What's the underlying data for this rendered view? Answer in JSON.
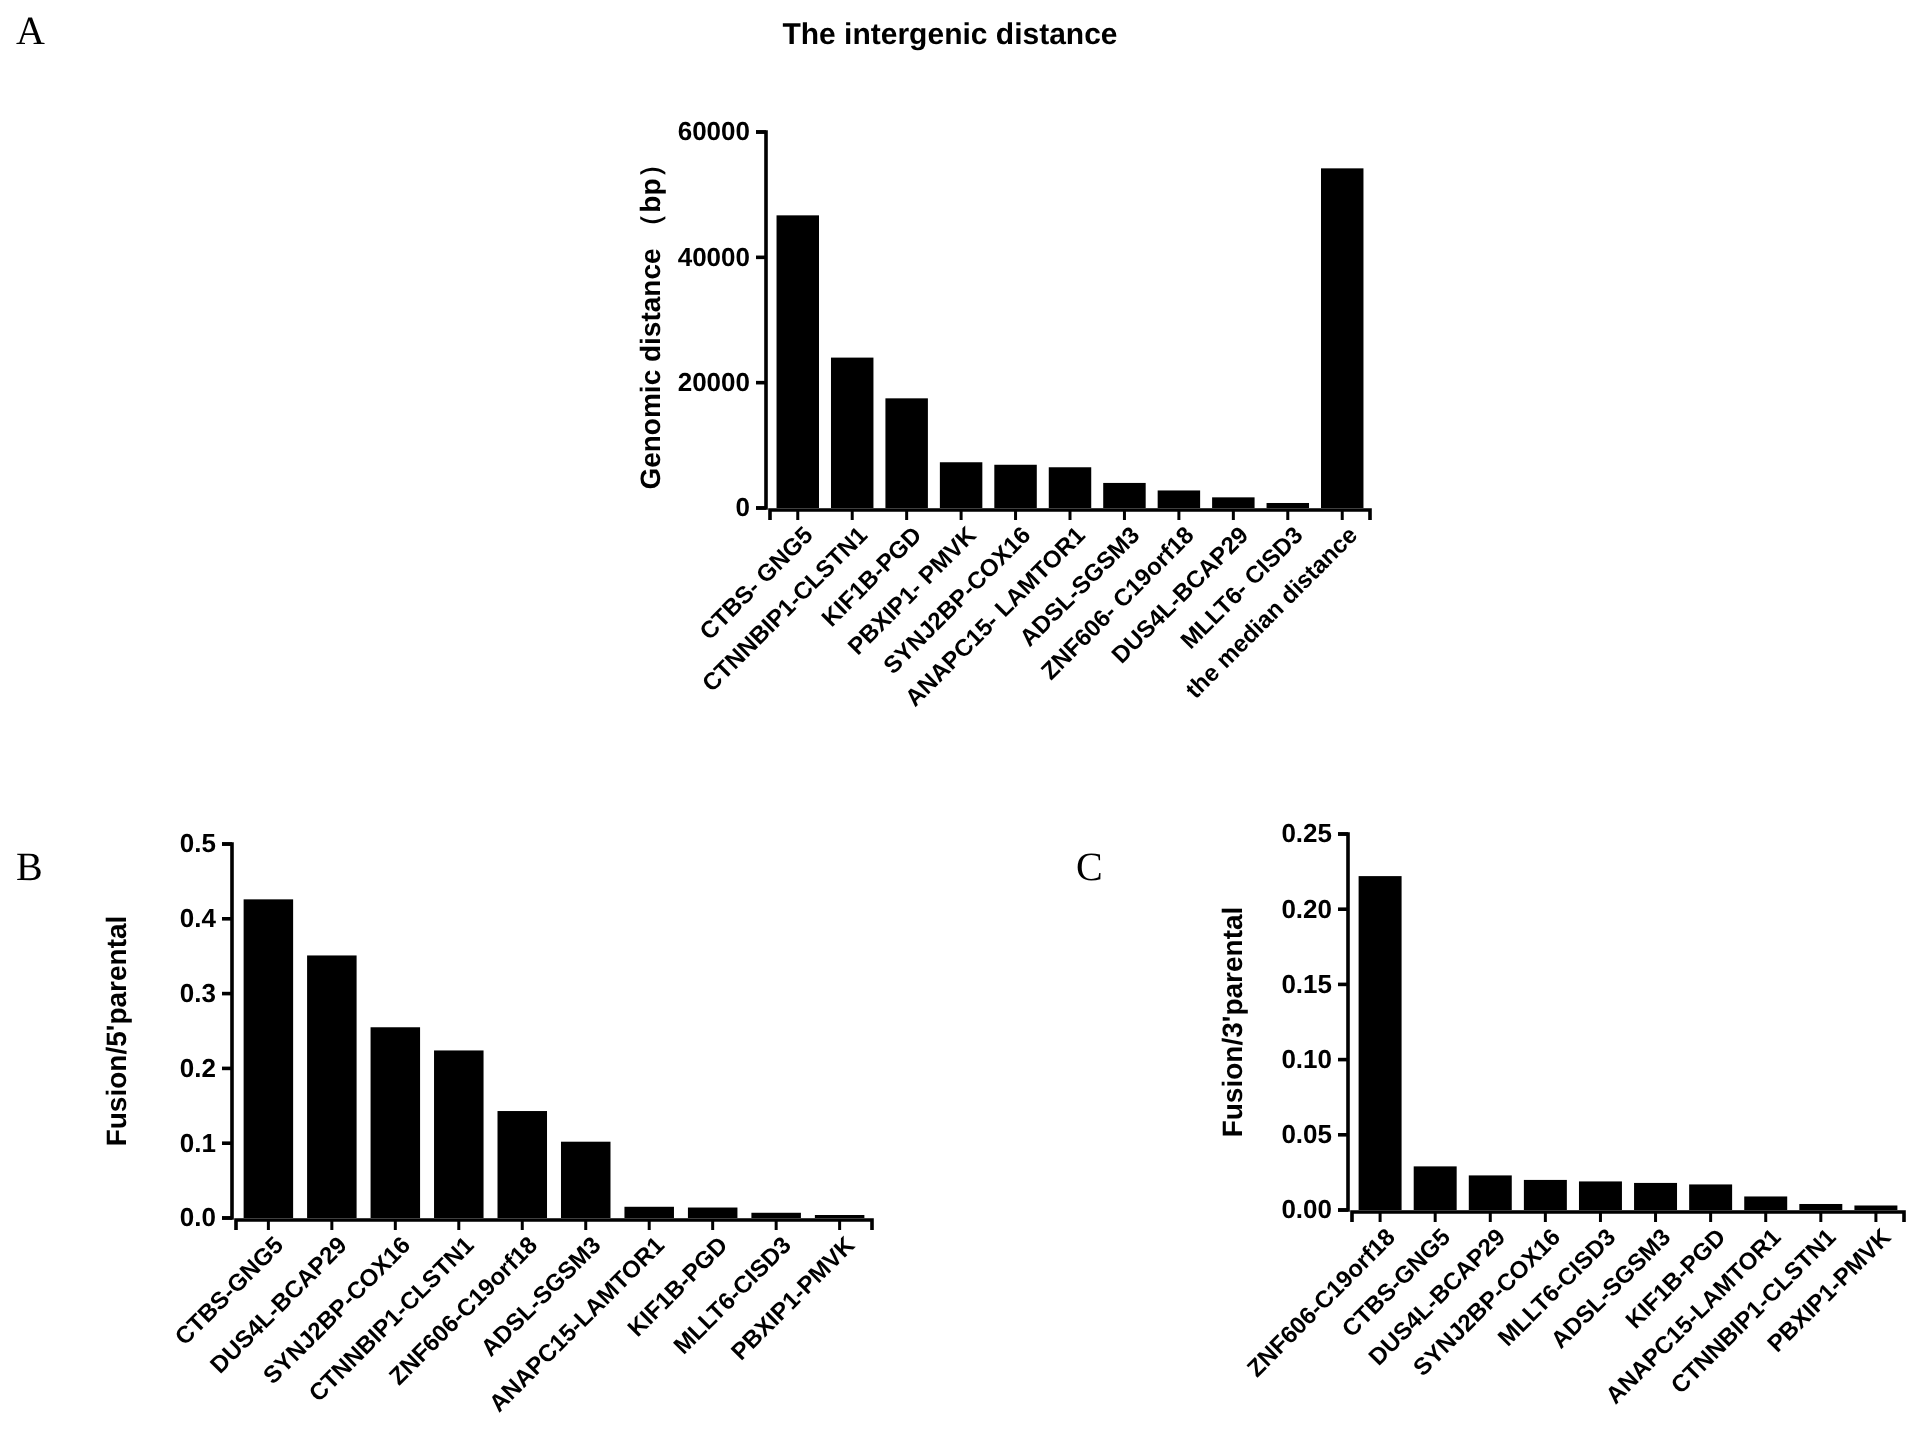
{
  "chart_data": [
    {
      "type": "bar",
      "title": "The intergenic distance",
      "ylabel": "Genomic distance （bp）",
      "annotations": [
        "A"
      ],
      "categories": [
        "CTBS- GNG5",
        "CTNNBIP1-CLSTN1",
        "KIF1B-PGD",
        "PBXIP1- PMVK",
        "SYNJ2BP-COX16",
        "ANAPC15- LAMTOR1",
        "ADSL-SGSM3",
        "ZNF606- C19orf18",
        "DUS4L-BCAP29",
        "MLLT6- CISD3",
        "the median distance"
      ],
      "values": [
        46700,
        24000,
        17500,
        7300,
        6900,
        6500,
        4000,
        2800,
        1700,
        800,
        54200
      ],
      "color": "#000000",
      "ylim": [
        0,
        60000
      ],
      "yticks": [
        0,
        20000,
        40000,
        60000
      ],
      "grid": false
    },
    {
      "type": "bar",
      "ylabel": "Fusion/5'parental",
      "annotations": [
        "B"
      ],
      "categories": [
        "CTBS-GNG5",
        "DUS4L-BCAP29",
        "SYNJ2BP-COX16",
        "CTNNBIP1-CLSTN1",
        "ZNF606-C19orf18",
        "ADSL-SGSM3",
        "ANAPC15-LAMTOR1",
        "KIF1B-PGD",
        "MLLT6-CISD3",
        "PBXIP1-PMVK"
      ],
      "values": [
        0.426,
        0.351,
        0.255,
        0.224,
        0.143,
        0.102,
        0.015,
        0.014,
        0.007,
        0.004
      ],
      "color": "#000000",
      "ylim": [
        0,
        0.5
      ],
      "yticks": [
        {
          "value": 0,
          "label": "0.0"
        },
        0.1,
        0.2,
        0.3,
        0.4,
        0.5
      ],
      "grid": false
    },
    {
      "type": "bar",
      "ylabel": "Fusion/3'parental",
      "annotations": [
        "C"
      ],
      "categories": [
        "ZNF606-C19orf18",
        "CTBS-GNG5",
        "DUS4L-BCAP29",
        "SYNJ2BP-COX16",
        "MLLT6-CISD3",
        "ADSL-SGSM3",
        "KIF1B-PGD",
        "ANAPC15-LAMTOR1",
        "CTNNBIP1-CLSTN1",
        "PBXIP1-PMVK"
      ],
      "values": [
        0.222,
        0.029,
        0.023,
        0.02,
        0.019,
        0.018,
        0.017,
        0.009,
        0.004,
        0.003
      ],
      "color": "#000000",
      "ylim": [
        0,
        0.25
      ],
      "yticks": [
        {
          "value": 0,
          "label": "0.00"
        },
        {
          "value": 0.05,
          "label": "0.05"
        },
        {
          "value": 0.1,
          "label": "0.10"
        },
        {
          "value": 0.15,
          "label": "0.15"
        },
        {
          "value": 0.2,
          "label": "0.20"
        },
        {
          "value": 0.25,
          "label": "0.25"
        }
      ],
      "grid": false
    }
  ]
}
